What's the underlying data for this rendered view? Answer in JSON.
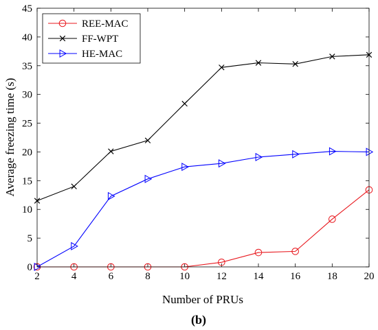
{
  "chart_data": {
    "type": "line",
    "xlabel": "Number of PRUs",
    "ylabel": "Average freezing time (s)",
    "caption": "(b)",
    "xlim": [
      2,
      20
    ],
    "ylim": [
      0,
      45
    ],
    "x": [
      2,
      4,
      6,
      8,
      10,
      12,
      14,
      16,
      18,
      20
    ],
    "xticks": [
      2,
      4,
      6,
      8,
      10,
      12,
      14,
      16,
      18,
      20
    ],
    "yticks": [
      0,
      5,
      10,
      15,
      20,
      25,
      30,
      35,
      40,
      45
    ],
    "grid": false,
    "legend_position": "top-left",
    "series": [
      {
        "name": "REE-MAC",
        "color": "#e8151b",
        "marker": "circle",
        "values": [
          0,
          0,
          0,
          0,
          0,
          0.8,
          2.5,
          2.7,
          8.3,
          13.4
        ]
      },
      {
        "name": "FF-WPT",
        "color": "#000000",
        "marker": "x",
        "values": [
          11.5,
          14.0,
          20.1,
          22.0,
          28.4,
          34.7,
          35.5,
          35.3,
          36.6,
          36.9
        ]
      },
      {
        "name": "HE-MAC",
        "color": "#0000ff",
        "marker": "triangle-right",
        "values": [
          0,
          3.6,
          12.3,
          15.3,
          17.4,
          18.0,
          19.1,
          19.6,
          20.1,
          20.0
        ]
      }
    ]
  }
}
